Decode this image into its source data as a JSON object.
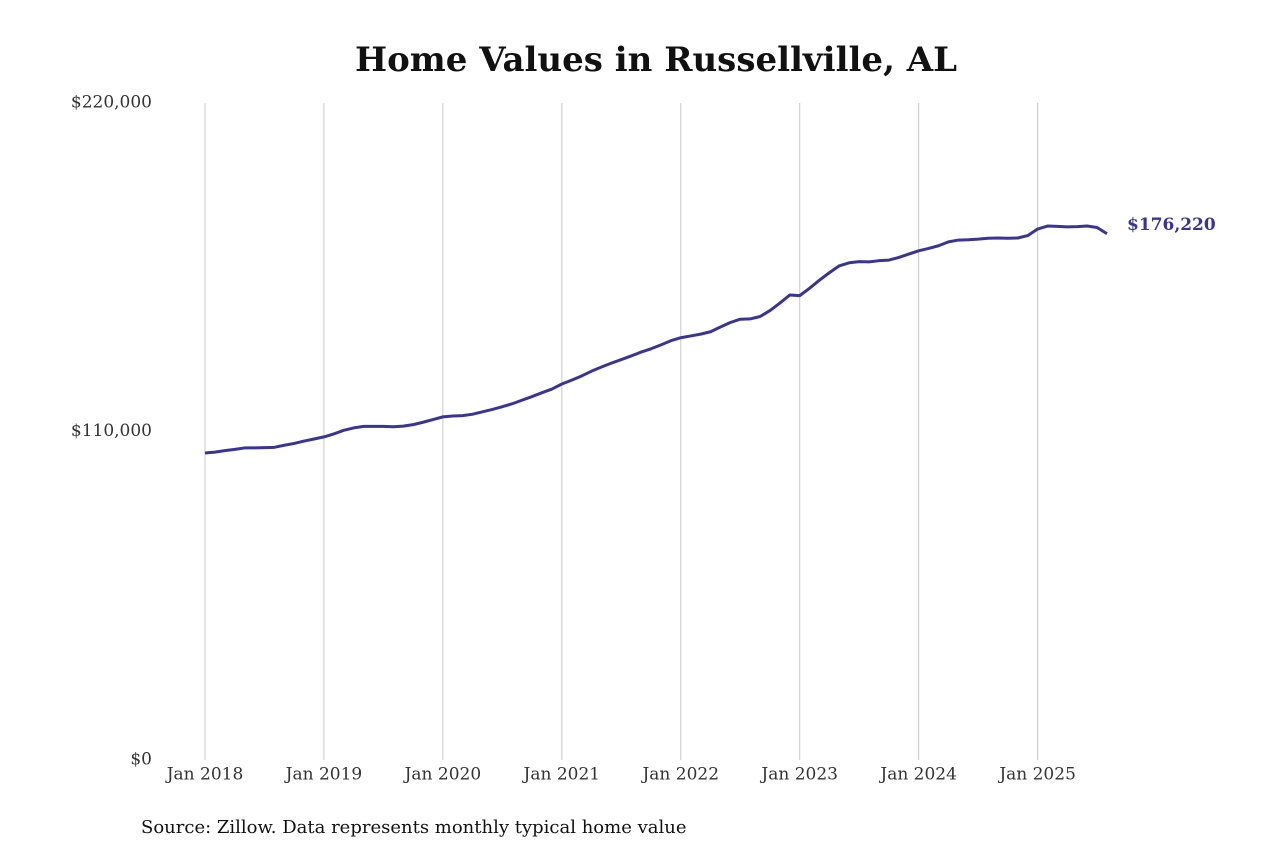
{
  "chart_data": {
    "type": "line",
    "title": "Home Values in Russellville, AL",
    "source": "Source: Zillow. Data represents monthly typical home value",
    "x": [
      "2018-01",
      "2018-02",
      "2018-03",
      "2018-04",
      "2018-05",
      "2018-06",
      "2018-07",
      "2018-08",
      "2018-09",
      "2018-10",
      "2018-11",
      "2018-12",
      "2019-01",
      "2019-02",
      "2019-03",
      "2019-04",
      "2019-05",
      "2019-06",
      "2019-07",
      "2019-08",
      "2019-09",
      "2019-10",
      "2019-11",
      "2019-12",
      "2020-01",
      "2020-02",
      "2020-03",
      "2020-04",
      "2020-05",
      "2020-06",
      "2020-07",
      "2020-08",
      "2020-09",
      "2020-10",
      "2020-11",
      "2020-12",
      "2021-01",
      "2021-02",
      "2021-03",
      "2021-04",
      "2021-05",
      "2021-06",
      "2021-07",
      "2021-08",
      "2021-09",
      "2021-10",
      "2021-11",
      "2021-12",
      "2022-01",
      "2022-02",
      "2022-03",
      "2022-04",
      "2022-05",
      "2022-06",
      "2022-07",
      "2022-08",
      "2022-09",
      "2022-10",
      "2022-11",
      "2022-12",
      "2023-01",
      "2023-02",
      "2023-03",
      "2023-04",
      "2023-05",
      "2023-06",
      "2023-07",
      "2023-08",
      "2023-09",
      "2023-10",
      "2023-11",
      "2023-12",
      "2024-01",
      "2024-02",
      "2024-03",
      "2024-04",
      "2024-05",
      "2024-06",
      "2024-07",
      "2024-08",
      "2024-09",
      "2024-10",
      "2024-11",
      "2024-12",
      "2025-01",
      "2025-02",
      "2025-03",
      "2025-04",
      "2025-05",
      "2025-06",
      "2025-07",
      "2025-08"
    ],
    "series": [
      {
        "name": "Home value",
        "color": "#3a3595",
        "values": [
          102800,
          103100,
          103600,
          104000,
          104500,
          104500,
          104600,
          104700,
          105400,
          106000,
          106800,
          107500,
          108200,
          109200,
          110400,
          111200,
          111700,
          111700,
          111700,
          111600,
          111800,
          112300,
          113100,
          114000,
          114900,
          115200,
          115300,
          115800,
          116600,
          117400,
          118300,
          119300,
          120500,
          121700,
          123000,
          124200,
          125900,
          127200,
          128600,
          130200,
          131600,
          132900,
          134100,
          135300,
          136600,
          137700,
          139000,
          140400,
          141400,
          142000,
          142600,
          143400,
          145000,
          146500,
          147600,
          147700,
          148500,
          150500,
          153000,
          155700,
          155500,
          158000,
          160700,
          163200,
          165500,
          166500,
          166900,
          166800,
          167200,
          167400,
          168300,
          169400,
          170500,
          171300,
          172200,
          173500,
          174100,
          174200,
          174400,
          174700,
          174800,
          174700,
          174800,
          175600,
          177800,
          178800,
          178700,
          178500,
          178600,
          178800,
          178300,
          176220
        ],
        "value_labels": [
          null,
          null,
          null,
          null,
          null,
          null,
          null,
          null,
          null,
          null,
          null,
          null,
          null,
          null,
          null,
          null,
          null,
          null,
          null,
          null,
          null,
          null,
          null,
          null,
          null,
          null,
          null,
          null,
          null,
          null,
          null,
          null,
          null,
          null,
          null,
          null,
          null,
          null,
          null,
          null,
          null,
          null,
          null,
          null,
          null,
          null,
          null,
          null,
          null,
          null,
          null,
          null,
          null,
          null,
          null,
          null,
          null,
          null,
          null,
          null,
          null,
          null,
          null,
          null,
          null,
          null,
          null,
          null,
          null,
          null,
          null,
          null,
          null,
          null,
          null,
          null,
          null,
          null,
          null,
          null,
          null,
          null,
          null,
          null,
          null,
          null,
          null,
          null,
          null,
          null,
          null,
          "$176,220"
        ]
      }
    ],
    "xticks": [
      {
        "value": "2018-01",
        "label": "Jan 2018"
      },
      {
        "value": "2019-01",
        "label": "Jan 2019"
      },
      {
        "value": "2020-01",
        "label": "Jan 2020"
      },
      {
        "value": "2021-01",
        "label": "Jan 2021"
      },
      {
        "value": "2022-01",
        "label": "Jan 2022"
      },
      {
        "value": "2023-01",
        "label": "Jan 2023"
      },
      {
        "value": "2024-01",
        "label": "Jan 2024"
      },
      {
        "value": "2025-01",
        "label": "Jan 2025"
      }
    ],
    "ylim": [
      0,
      220000
    ],
    "yticks": [
      {
        "value": 0,
        "label": "$0"
      },
      {
        "value": 110000,
        "label": "$110,000"
      },
      {
        "value": 220000,
        "label": "$220,000"
      }
    ],
    "grid": "x"
  }
}
